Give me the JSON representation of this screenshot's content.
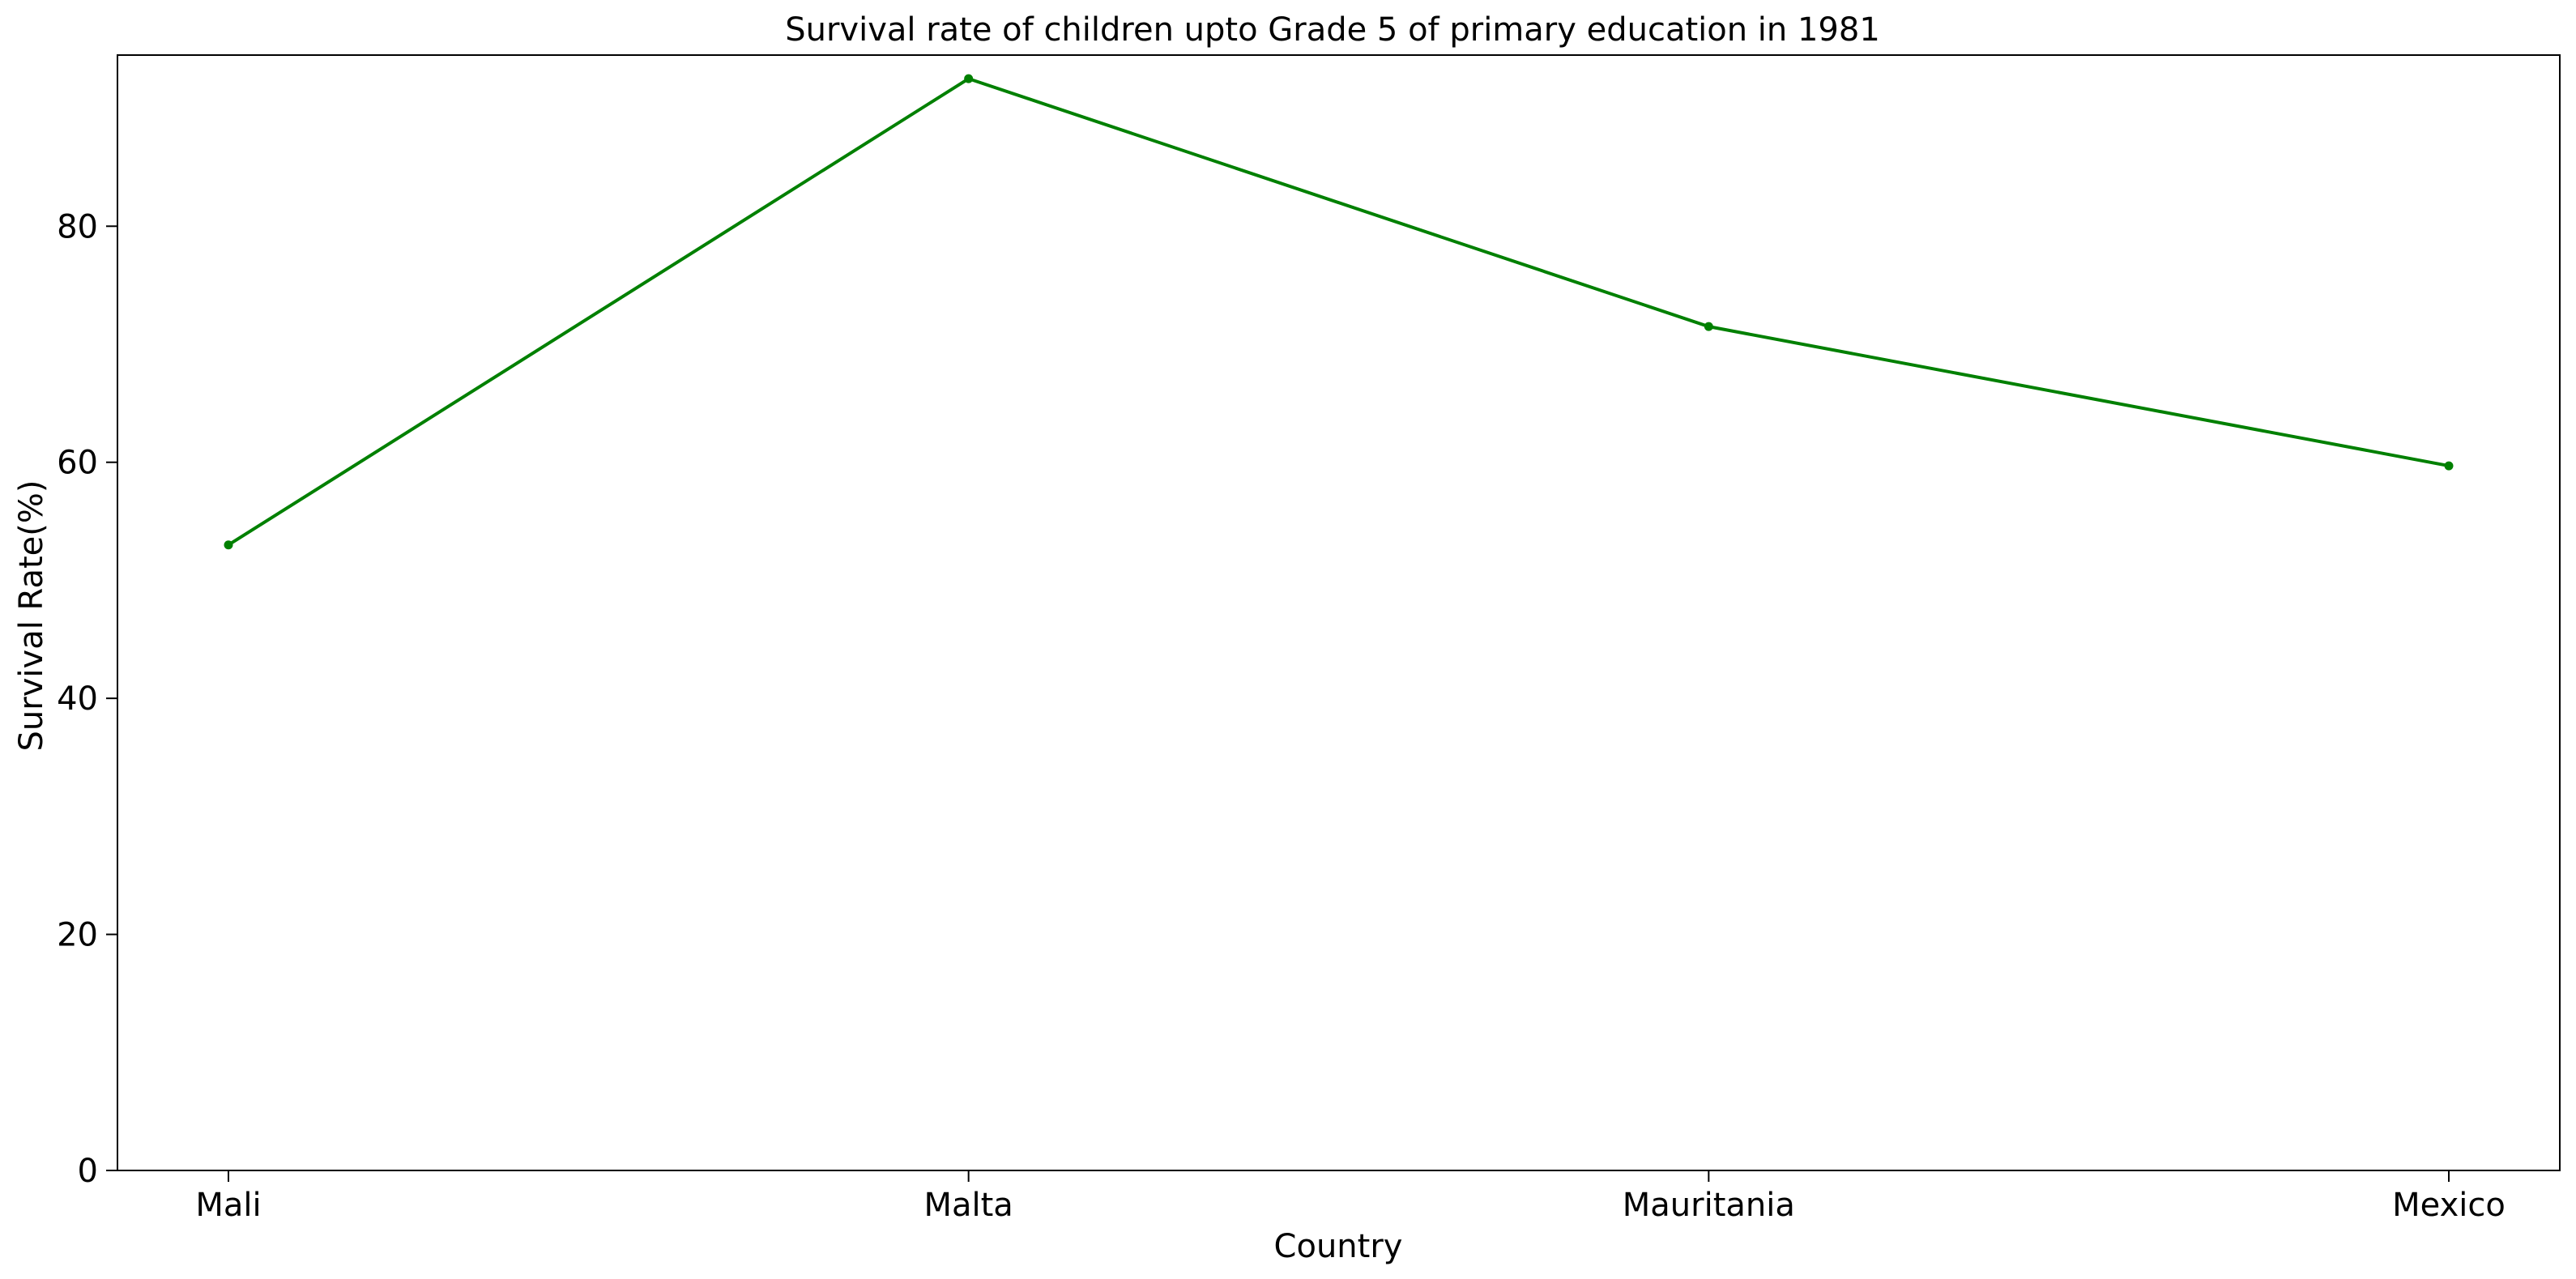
{
  "chart_data": {
    "type": "line",
    "title": "Survival rate of children upto Grade 5 of primary education in 1981",
    "xlabel": "Country",
    "ylabel": "Survival Rate(%)",
    "categories": [
      "Mali",
      "Malta",
      "Mauritania",
      "Mexico"
    ],
    "series": [
      {
        "values": [
          53.0,
          92.5,
          71.5,
          59.7
        ],
        "color": "#008000"
      }
    ],
    "ylim": [
      0,
      94.5
    ],
    "yticks": [
      0,
      20,
      40,
      60,
      80
    ],
    "grid": false,
    "legend": "none"
  }
}
